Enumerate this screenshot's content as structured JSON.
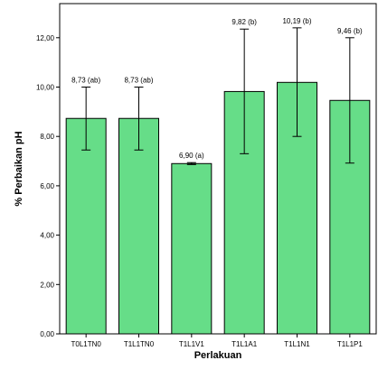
{
  "chart_data": {
    "type": "bar",
    "xlabel": "Perlakuan",
    "ylabel": "% Perbaikan pH",
    "ylim": [
      0,
      14
    ],
    "yticks": [
      "0,00",
      "2,00",
      "4,00",
      "6,00",
      "8,00",
      "10,00",
      "12,00"
    ],
    "ytick_values": [
      0,
      2,
      4,
      6,
      8,
      10,
      12
    ],
    "categories": [
      "T0L1TN0",
      "T1L1TN0",
      "T1L1V1",
      "T1L1A1",
      "T1L1N1",
      "T1L1P1"
    ],
    "values": [
      8.73,
      8.73,
      6.9,
      9.82,
      10.19,
      9.46
    ],
    "error_low": [
      7.45,
      7.45,
      6.86,
      7.3,
      8.0,
      6.92
    ],
    "error_high": [
      10.0,
      10.0,
      6.94,
      12.35,
      12.4,
      12.0
    ],
    "data_labels": [
      "8,73 (ab)",
      "8,73 (ab)",
      "6,90 (a)",
      "9,82 (b)",
      "10,19 (b)",
      "9,46 (b)"
    ],
    "grid": false,
    "colors": {
      "bar_fill": "#66dd88",
      "bar_stroke": "#000000",
      "axis": "#000000"
    }
  }
}
